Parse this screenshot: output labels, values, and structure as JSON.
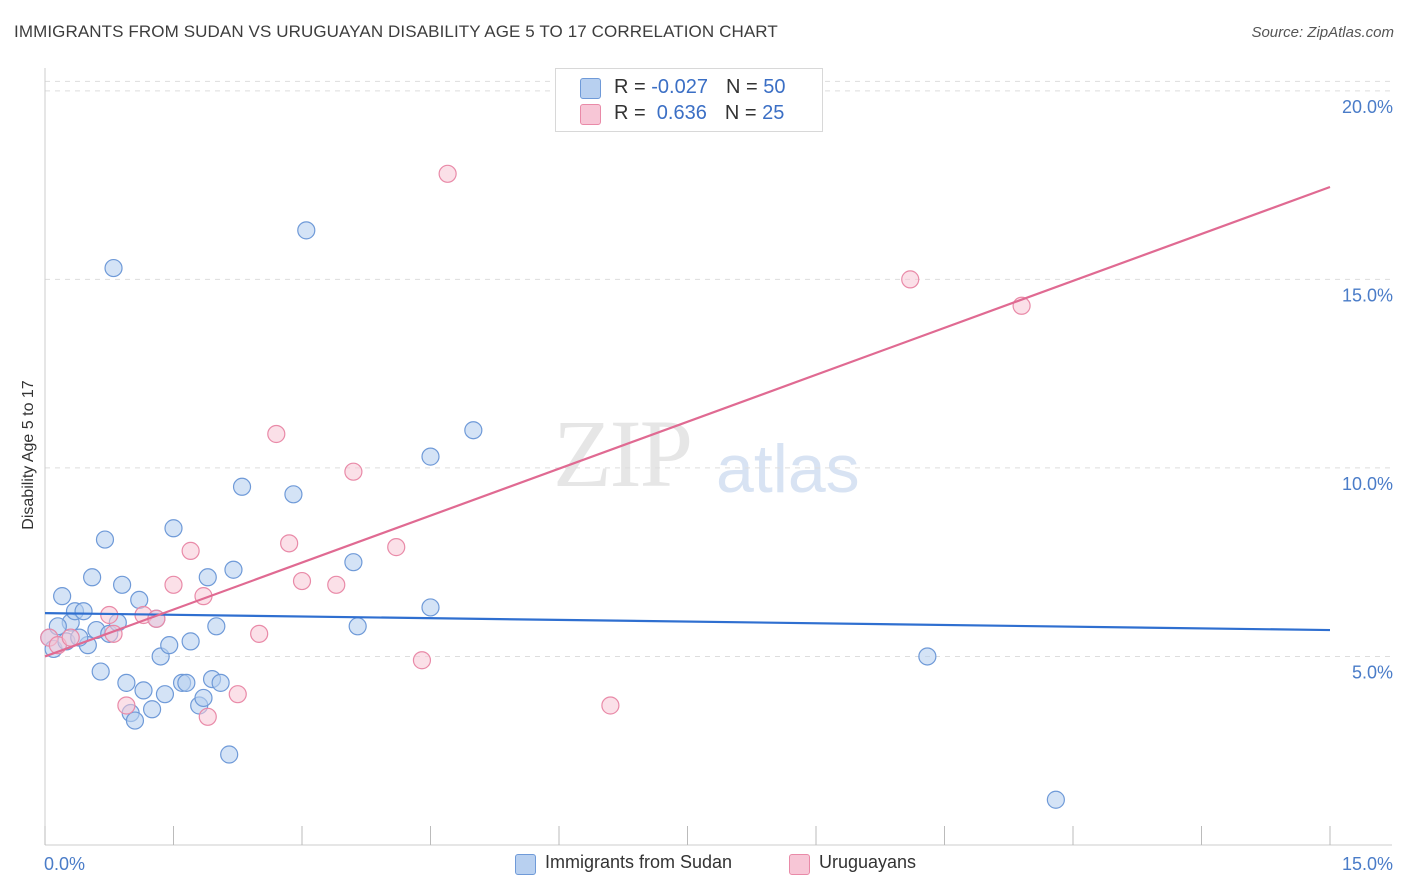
{
  "header": {
    "title": "IMMIGRANTS FROM SUDAN VS URUGUAYAN DISABILITY AGE 5 TO 17 CORRELATION CHART",
    "source": "Source: ZipAtlas.com"
  },
  "watermark": {
    "zip": "ZIP",
    "atlas": "atlas"
  },
  "legend": {
    "rows": [
      {
        "r_label": "R = ",
        "r_value": "-0.027",
        "n_label": "N = ",
        "n_value": "50"
      },
      {
        "r_label": "R = ",
        "r_value": " 0.636",
        "n_label": "N = ",
        "n_value": "25"
      }
    ]
  },
  "bottom_legend": {
    "series1": "Immigrants from Sudan",
    "series2": "Uruguayans"
  },
  "colors": {
    "blue_fill": "#b8d0f0",
    "blue_stroke": "#6f9ad8",
    "blue_line": "#2f6fd0",
    "pink_fill": "#f7c6d6",
    "pink_stroke": "#e98aa8",
    "pink_line": "#e06a92",
    "tick_label": "#4a7cc8",
    "grid": "#dddddd"
  },
  "chart_data": {
    "type": "scatter",
    "title": "IMMIGRANTS FROM SUDAN VS URUGUAYAN DISABILITY AGE 5 TO 17 CORRELATION CHART",
    "xlabel": "",
    "ylabel": "Disability Age 5 to 17",
    "xlim": [
      0,
      15
    ],
    "ylim": [
      0,
      20.5
    ],
    "x_tick_labels": [
      "0.0%",
      "15.0%"
    ],
    "y_ticks": [
      5,
      10,
      15,
      20
    ],
    "y_tick_labels": [
      "5.0%",
      "10.0%",
      "15.0%",
      "20.0%"
    ],
    "series": [
      {
        "name": "Immigrants from Sudan",
        "r": -0.027,
        "n": 50,
        "trend": {
          "x": [
            0,
            15
          ],
          "y": [
            6.15,
            5.7
          ]
        },
        "points": [
          {
            "x": 0.05,
            "y": 5.5
          },
          {
            "x": 0.1,
            "y": 5.2
          },
          {
            "x": 0.2,
            "y": 6.6
          },
          {
            "x": 0.25,
            "y": 5.4
          },
          {
            "x": 0.3,
            "y": 5.9
          },
          {
            "x": 0.35,
            "y": 6.2
          },
          {
            "x": 0.45,
            "y": 6.2
          },
          {
            "x": 0.5,
            "y": 5.3
          },
          {
            "x": 0.55,
            "y": 7.1
          },
          {
            "x": 0.6,
            "y": 5.7
          },
          {
            "x": 0.65,
            "y": 4.6
          },
          {
            "x": 0.7,
            "y": 8.1
          },
          {
            "x": 0.75,
            "y": 5.6
          },
          {
            "x": 0.8,
            "y": 15.3
          },
          {
            "x": 0.85,
            "y": 5.9
          },
          {
            "x": 0.9,
            "y": 6.9
          },
          {
            "x": 0.95,
            "y": 4.3
          },
          {
            "x": 1.0,
            "y": 3.5
          },
          {
            "x": 1.05,
            "y": 3.3
          },
          {
            "x": 1.1,
            "y": 6.5
          },
          {
            "x": 1.15,
            "y": 4.1
          },
          {
            "x": 1.25,
            "y": 3.6
          },
          {
            "x": 1.3,
            "y": 6.0
          },
          {
            "x": 1.35,
            "y": 5.0
          },
          {
            "x": 1.4,
            "y": 4.0
          },
          {
            "x": 1.45,
            "y": 5.3
          },
          {
            "x": 1.5,
            "y": 8.4
          },
          {
            "x": 1.6,
            "y": 4.3
          },
          {
            "x": 1.65,
            "y": 4.3
          },
          {
            "x": 1.7,
            "y": 5.4
          },
          {
            "x": 1.8,
            "y": 3.7
          },
          {
            "x": 1.85,
            "y": 3.9
          },
          {
            "x": 1.9,
            "y": 7.1
          },
          {
            "x": 1.95,
            "y": 4.4
          },
          {
            "x": 2.0,
            "y": 5.8
          },
          {
            "x": 2.05,
            "y": 4.3
          },
          {
            "x": 2.15,
            "y": 2.4
          },
          {
            "x": 2.2,
            "y": 7.3
          },
          {
            "x": 2.3,
            "y": 9.5
          },
          {
            "x": 2.9,
            "y": 9.3
          },
          {
            "x": 3.05,
            "y": 16.3
          },
          {
            "x": 3.6,
            "y": 7.5
          },
          {
            "x": 3.65,
            "y": 5.8
          },
          {
            "x": 4.5,
            "y": 10.3
          },
          {
            "x": 4.5,
            "y": 6.3
          },
          {
            "x": 5.0,
            "y": 11.0
          },
          {
            "x": 10.3,
            "y": 5.0
          },
          {
            "x": 11.8,
            "y": 1.2
          },
          {
            "x": 0.15,
            "y": 5.8
          },
          {
            "x": 0.4,
            "y": 5.5
          }
        ]
      },
      {
        "name": "Uruguayans",
        "r": 0.636,
        "n": 25,
        "trend": {
          "x": [
            0,
            15
          ],
          "y": [
            5.0,
            17.45
          ]
        },
        "points": [
          {
            "x": 0.05,
            "y": 5.5
          },
          {
            "x": 0.15,
            "y": 5.3
          },
          {
            "x": 0.3,
            "y": 5.5
          },
          {
            "x": 0.75,
            "y": 6.1
          },
          {
            "x": 0.8,
            "y": 5.6
          },
          {
            "x": 0.95,
            "y": 3.7
          },
          {
            "x": 1.15,
            "y": 6.1
          },
          {
            "x": 1.5,
            "y": 6.9
          },
          {
            "x": 1.7,
            "y": 7.8
          },
          {
            "x": 1.85,
            "y": 6.6
          },
          {
            "x": 1.9,
            "y": 3.4
          },
          {
            "x": 2.25,
            "y": 4.0
          },
          {
            "x": 2.5,
            "y": 5.6
          },
          {
            "x": 2.7,
            "y": 10.9
          },
          {
            "x": 2.85,
            "y": 8.0
          },
          {
            "x": 3.0,
            "y": 7.0
          },
          {
            "x": 3.4,
            "y": 6.9
          },
          {
            "x": 3.6,
            "y": 9.9
          },
          {
            "x": 4.1,
            "y": 7.9
          },
          {
            "x": 4.4,
            "y": 4.9
          },
          {
            "x": 4.7,
            "y": 17.8
          },
          {
            "x": 6.6,
            "y": 3.7
          },
          {
            "x": 10.1,
            "y": 15.0
          },
          {
            "x": 11.4,
            "y": 14.3
          },
          {
            "x": 1.3,
            "y": 6.0
          }
        ]
      }
    ]
  }
}
